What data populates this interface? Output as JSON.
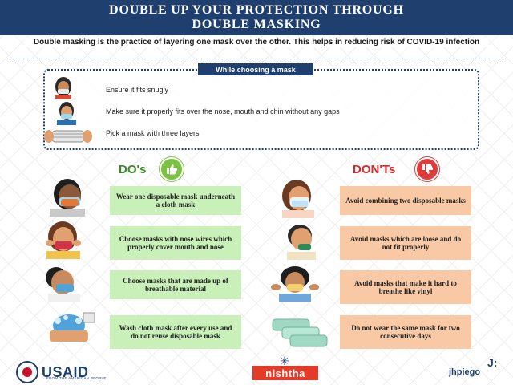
{
  "header": {
    "title_line1": "DOUBLE UP YOUR PROTECTION THROUGH",
    "title_line2": "DOUBLE MASKING"
  },
  "intro": "Double masking is the practice of layering one mask over the other. This helps in reducing risk of COVID-19 infection",
  "choosing": {
    "heading": "While choosing a mask",
    "items": [
      "Ensure it fits snugly",
      "Make sure it properly fits over the nose, mouth and chin without any gaps",
      "Pick a mask with three layers"
    ]
  },
  "dos": {
    "heading": "DO's",
    "icon": "thumbs-up-icon",
    "color": "#7cc242",
    "items": [
      "Wear one disposable mask underneath a cloth mask",
      "Choose masks with nose wires which properly cover mouth and nose",
      "Choose masks that are made up of breathable material",
      "Wash cloth mask after every use and do not reuse disposable mask"
    ]
  },
  "donts": {
    "heading": "DON'Ts",
    "icon": "thumbs-down-icon",
    "color": "#e03a3a",
    "items": [
      "Avoid combining two disposable masks",
      "Avoid masks which are loose and do not fit properly",
      "Avoid masks that make it hard to breathe like vinyl",
      "Do not wear the same mask for two consecutive days"
    ]
  },
  "footer": {
    "usaid": "USAID",
    "usaid_tagline": "FROM THE AMERICAN PEOPLE",
    "nishtha": "nishtha",
    "jhpiego": "jhpiego"
  },
  "colors": {
    "navy": "#1f3f6e",
    "do_card": "#c8f0b8",
    "dont_card": "#f8c9a4"
  }
}
